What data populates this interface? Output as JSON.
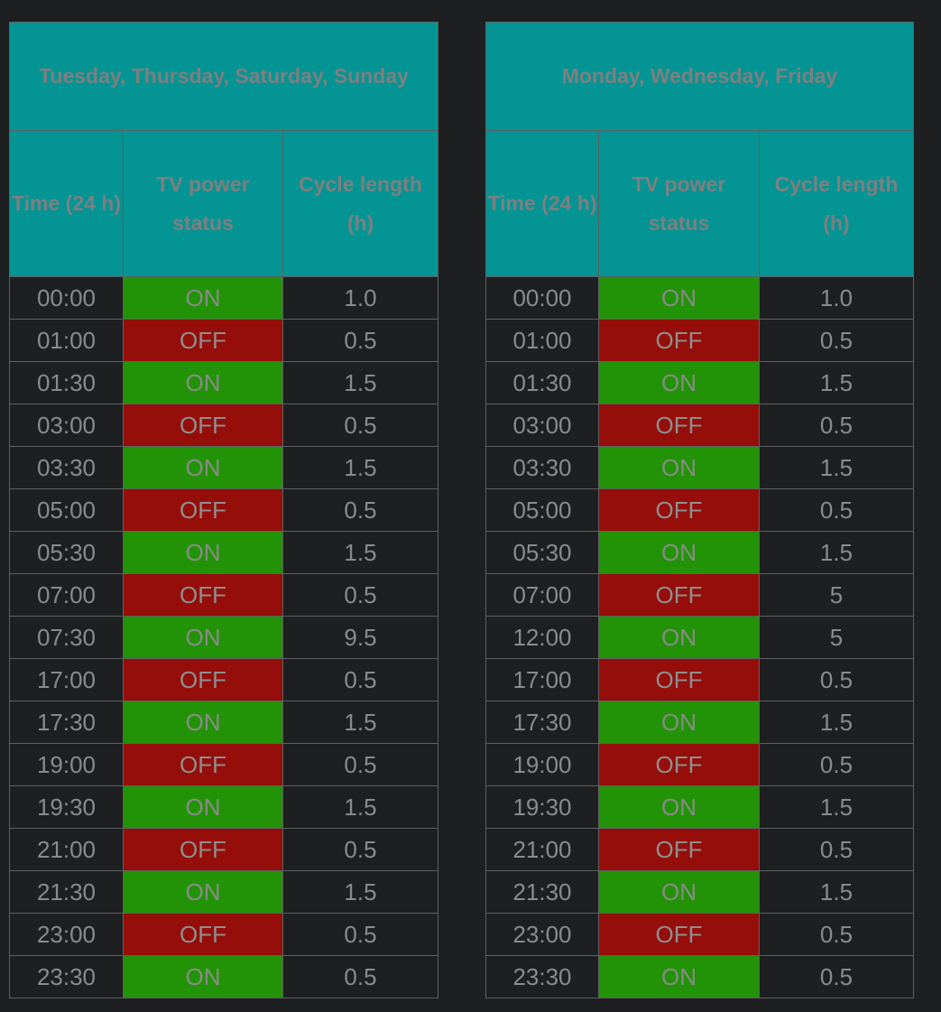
{
  "colors": {
    "header_bg": "#049494",
    "on_bg": "#229306",
    "off_bg": "#950e0a",
    "page_bg": "#1e1f21"
  },
  "tables": [
    {
      "title": "Tuesday, Thursday, Saturday, Sunday",
      "headers": [
        "Time (24 h)",
        "TV power status",
        "Cycle length (h)"
      ],
      "rows": [
        [
          "00:00",
          "ON",
          "1.0"
        ],
        [
          "01:00",
          "OFF",
          "0.5"
        ],
        [
          "01:30",
          "ON",
          "1.5"
        ],
        [
          "03:00",
          "OFF",
          "0.5"
        ],
        [
          "03:30",
          "ON",
          "1.5"
        ],
        [
          "05:00",
          "OFF",
          "0.5"
        ],
        [
          "05:30",
          "ON",
          "1.5"
        ],
        [
          "07:00",
          "OFF",
          "0.5"
        ],
        [
          "07:30",
          "ON",
          "9.5"
        ],
        [
          "17:00",
          "OFF",
          "0.5"
        ],
        [
          "17:30",
          "ON",
          "1.5"
        ],
        [
          "19:00",
          "OFF",
          "0.5"
        ],
        [
          "19:30",
          "ON",
          "1.5"
        ],
        [
          "21:00",
          "OFF",
          "0.5"
        ],
        [
          "21:30",
          "ON",
          "1.5"
        ],
        [
          "23:00",
          "OFF",
          "0.5"
        ],
        [
          "23:30",
          "ON",
          "0.5"
        ]
      ]
    },
    {
      "title": "Monday, Wednesday, Friday",
      "headers": [
        "Time (24 h)",
        "TV power status",
        "Cycle length (h)"
      ],
      "rows": [
        [
          "00:00",
          "ON",
          "1.0"
        ],
        [
          "01:00",
          "OFF",
          "0.5"
        ],
        [
          "01:30",
          "ON",
          "1.5"
        ],
        [
          "03:00",
          "OFF",
          "0.5"
        ],
        [
          "03:30",
          "ON",
          "1.5"
        ],
        [
          "05:00",
          "OFF",
          "0.5"
        ],
        [
          "05:30",
          "ON",
          "1.5"
        ],
        [
          "07:00",
          "OFF",
          "5"
        ],
        [
          "12:00",
          "ON",
          "5"
        ],
        [
          "17:00",
          "OFF",
          "0.5"
        ],
        [
          "17:30",
          "ON",
          "1.5"
        ],
        [
          "19:00",
          "OFF",
          "0.5"
        ],
        [
          "19:30",
          "ON",
          "1.5"
        ],
        [
          "21:00",
          "OFF",
          "0.5"
        ],
        [
          "21:30",
          "ON",
          "1.5"
        ],
        [
          "23:00",
          "OFF",
          "0.5"
        ],
        [
          "23:30",
          "ON",
          "0.5"
        ]
      ]
    }
  ]
}
